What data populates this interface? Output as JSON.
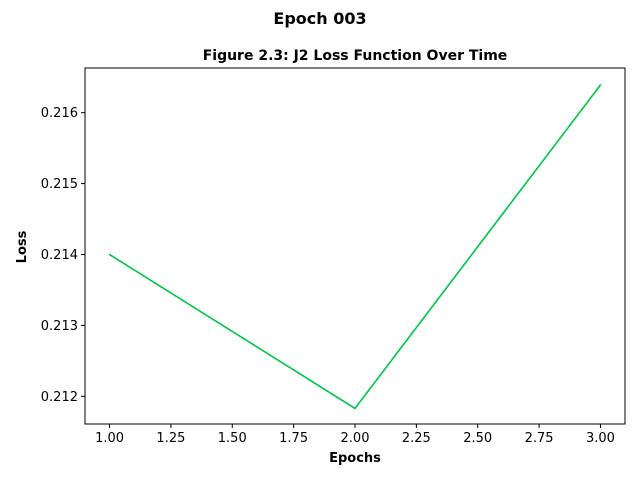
{
  "figure": {
    "suptitle": "Epoch 003"
  },
  "chart_data": {
    "type": "line",
    "title": "Figure 2.3: J2 Loss Function Over Time",
    "xlabel": "Epochs",
    "ylabel": "Loss",
    "xlim": [
      0.9,
      3.1
    ],
    "ylim": [
      0.21161,
      0.21663
    ],
    "xticks": [
      1.0,
      1.25,
      1.5,
      1.75,
      2.0,
      2.25,
      2.5,
      2.75,
      3.0
    ],
    "xtick_labels": [
      "1.00",
      "1.25",
      "1.50",
      "1.75",
      "2.00",
      "2.25",
      "2.50",
      "2.75",
      "3.00"
    ],
    "yticks": [
      0.212,
      0.213,
      0.214,
      0.215,
      0.216
    ],
    "ytick_labels": [
      "0.212",
      "0.213",
      "0.214",
      "0.215",
      "0.216"
    ],
    "grid": false,
    "series": [
      {
        "x": [
          1.0,
          2.0,
          3.0
        ],
        "y": [
          0.214,
          0.21183,
          0.21639
        ],
        "color": "#00c04b"
      }
    ]
  }
}
